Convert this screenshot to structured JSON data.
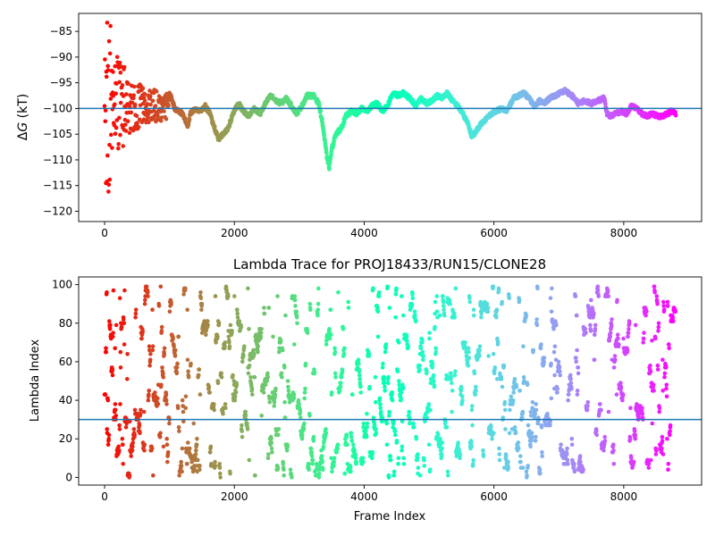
{
  "chart_data": [
    {
      "type": "scatter",
      "title": "",
      "xlabel": "",
      "ylabel": "ΔG (kT)",
      "ylabel_parts": {
        "delta": "Δ",
        "var": "G",
        "unit": " (kT)"
      },
      "xlim": [
        -400,
        9200
      ],
      "ylim": [
        -122,
        -81.5
      ],
      "xticks": [
        0,
        2000,
        4000,
        6000,
        8000
      ],
      "xtick_labels": [
        "0",
        "2000",
        "4000",
        "6000",
        "8000"
      ],
      "yticks": [
        -120,
        -115,
        -110,
        -105,
        -100,
        -95,
        -90,
        -85
      ],
      "ytick_labels": [
        "−120",
        "−115",
        "−110",
        "−105",
        "−100",
        "−95",
        "−90",
        "−85"
      ],
      "reference_line": {
        "y": -100,
        "color": "#1f77b4"
      },
      "colormap": "rainbow (red at frame 0 → violet at last frame)",
      "n_frames": 8800,
      "grid": false,
      "trace_anchors": [
        [
          1000,
          -97
        ],
        [
          1080,
          -100
        ],
        [
          1200,
          -101
        ],
        [
          1280,
          -103.5
        ],
        [
          1320,
          -101
        ],
        [
          1400,
          -100
        ],
        [
          1480,
          -100.5
        ],
        [
          1550,
          -99.5
        ],
        [
          1620,
          -101
        ],
        [
          1700,
          -104
        ],
        [
          1760,
          -106
        ],
        [
          1820,
          -105
        ],
        [
          1900,
          -104
        ],
        [
          1980,
          -101
        ],
        [
          2060,
          -99
        ],
        [
          2140,
          -100.5
        ],
        [
          2220,
          -101.5
        ],
        [
          2300,
          -100
        ],
        [
          2400,
          -101
        ],
        [
          2480,
          -99
        ],
        [
          2560,
          -97.5
        ],
        [
          2640,
          -98.5
        ],
        [
          2720,
          -99
        ],
        [
          2800,
          -98
        ],
        [
          2880,
          -99.5
        ],
        [
          2960,
          -101
        ],
        [
          3040,
          -99.5
        ],
        [
          3120,
          -97.5
        ],
        [
          3220,
          -97.5
        ],
        [
          3300,
          -99
        ],
        [
          3360,
          -103
        ],
        [
          3420,
          -109
        ],
        [
          3460,
          -111.5
        ],
        [
          3500,
          -108
        ],
        [
          3560,
          -105
        ],
        [
          3640,
          -104
        ],
        [
          3720,
          -101.5
        ],
        [
          3800,
          -100.5
        ],
        [
          3880,
          -101
        ],
        [
          3960,
          -100
        ],
        [
          4040,
          -100.5
        ],
        [
          4120,
          -99.5
        ],
        [
          4200,
          -99
        ],
        [
          4280,
          -100.5
        ],
        [
          4360,
          -99.5
        ],
        [
          4440,
          -97
        ],
        [
          4520,
          -97.5
        ],
        [
          4600,
          -97
        ],
        [
          4700,
          -98
        ],
        [
          4800,
          -99.5
        ],
        [
          4880,
          -98
        ],
        [
          4960,
          -99
        ],
        [
          5040,
          -98.5
        ],
        [
          5120,
          -97.5
        ],
        [
          5200,
          -98
        ],
        [
          5280,
          -97
        ],
        [
          5360,
          -98.5
        ],
        [
          5440,
          -99.5
        ],
        [
          5520,
          -101
        ],
        [
          5600,
          -103
        ],
        [
          5660,
          -105.5
        ],
        [
          5720,
          -104.5
        ],
        [
          5800,
          -103
        ],
        [
          5880,
          -102
        ],
        [
          5960,
          -101
        ],
        [
          6040,
          -100.5
        ],
        [
          6120,
          -100
        ],
        [
          6200,
          -100.5
        ],
        [
          6300,
          -98
        ],
        [
          6380,
          -97.5
        ],
        [
          6460,
          -97
        ],
        [
          6540,
          -98
        ],
        [
          6620,
          -99.5
        ],
        [
          6700,
          -98.5
        ],
        [
          6780,
          -99
        ],
        [
          6860,
          -98
        ],
        [
          6940,
          -97.5
        ],
        [
          7020,
          -97
        ],
        [
          7100,
          -96.5
        ],
        [
          7200,
          -97.5
        ],
        [
          7300,
          -99
        ],
        [
          7400,
          -98.5
        ],
        [
          7500,
          -99
        ],
        [
          7600,
          -98.5
        ],
        [
          7700,
          -98
        ],
        [
          7740,
          -101
        ],
        [
          7800,
          -101.5
        ],
        [
          7880,
          -101
        ],
        [
          7960,
          -100.5
        ],
        [
          8040,
          -101
        ],
        [
          8120,
          -99.5
        ],
        [
          8200,
          -100
        ],
        [
          8280,
          -101
        ],
        [
          8360,
          -101.5
        ],
        [
          8440,
          -101
        ],
        [
          8520,
          -101.5
        ],
        [
          8600,
          -101.5
        ],
        [
          8680,
          -101
        ],
        [
          8740,
          -100.5
        ],
        [
          8800,
          -101
        ]
      ]
    },
    {
      "type": "scatter",
      "title": "Lambda Trace for PROJ18433/RUN15/CLONE28",
      "xlabel": "Frame Index",
      "ylabel": "Lambda Index",
      "xlim": [
        -400,
        9200
      ],
      "ylim": [
        -4,
        104
      ],
      "xticks": [
        0,
        2000,
        4000,
        6000,
        8000
      ],
      "xtick_labels": [
        "0",
        "2000",
        "4000",
        "6000",
        "8000"
      ],
      "yticks": [
        0,
        20,
        40,
        60,
        80,
        100
      ],
      "ytick_labels": [
        "0",
        "20",
        "40",
        "60",
        "80",
        "100"
      ],
      "reference_line": {
        "y": 30,
        "color": "#1f77b4"
      },
      "colormap": "rainbow (red at frame 0 → violet at last frame)",
      "n_frames": 8800,
      "lambda_range": [
        0,
        99
      ],
      "grid": false
    }
  ]
}
